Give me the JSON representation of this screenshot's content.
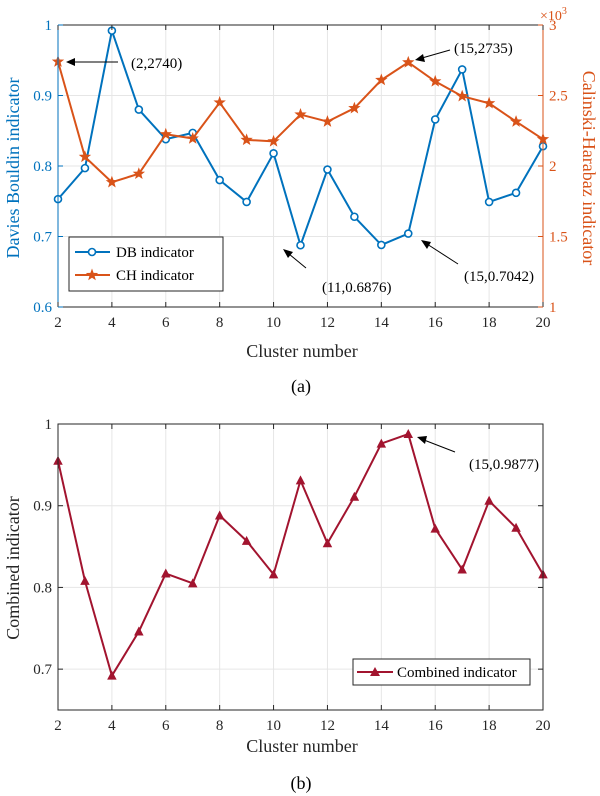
{
  "colors": {
    "db": "#0072BD",
    "ch": "#D95319",
    "combined": "#A2142F",
    "axis": "#262626",
    "grid": "#e6e6e6",
    "annotation": "#000000"
  },
  "chart_data": [
    {
      "type": "line",
      "panel_label": "(a)",
      "xlabel": "Cluster number",
      "ylabel_left": "Davies Bouldin indicator",
      "ylabel_right": "Calinski-Harabaz indicator",
      "right_exponent_label": "×10",
      "right_exponent_power": "3",
      "x": [
        2,
        3,
        4,
        5,
        6,
        7,
        8,
        9,
        10,
        11,
        12,
        13,
        14,
        15,
        16,
        17,
        18,
        19,
        20
      ],
      "xlim": [
        2,
        20
      ],
      "xticks": [
        2,
        4,
        6,
        8,
        10,
        12,
        14,
        16,
        18,
        20
      ],
      "ylim_left": [
        0.6,
        1.0
      ],
      "yticks_left": [
        0.6,
        0.7,
        0.8,
        0.9,
        1
      ],
      "ylim_right": [
        1,
        3
      ],
      "yticks_right": [
        1,
        1.5,
        2,
        2.5,
        3
      ],
      "grid": true,
      "legend_position": "bottom-left",
      "series": [
        {
          "name": "DB indicator",
          "axis": "left",
          "marker": "circle",
          "values": [
            0.753,
            0.797,
            0.992,
            0.88,
            0.838,
            0.847,
            0.78,
            0.749,
            0.818,
            0.6876,
            0.795,
            0.728,
            0.688,
            0.7042,
            0.866,
            0.937,
            0.749,
            0.762,
            0.828
          ]
        },
        {
          "name": "CH indicator",
          "axis": "right",
          "marker": "star",
          "values": [
            2.74,
            2.065,
            1.885,
            1.945,
            2.225,
            2.195,
            2.45,
            2.185,
            2.175,
            2.365,
            2.315,
            2.41,
            2.61,
            2.735,
            2.6,
            2.495,
            2.445,
            2.315,
            2.19
          ]
        }
      ],
      "annotations": [
        {
          "text": "(2,2740)",
          "x": 2,
          "y": 2.74,
          "axis": "right"
        },
        {
          "text": "(15,2735)",
          "x": 15,
          "y": 2.735,
          "axis": "right"
        },
        {
          "text": "(11,0.6876)",
          "x": 11,
          "y": 0.6876,
          "axis": "left"
        },
        {
          "text": "(15,0.7042)",
          "x": 15,
          "y": 0.7042,
          "axis": "left"
        }
      ]
    },
    {
      "type": "line",
      "panel_label": "(b)",
      "xlabel": "Cluster number",
      "ylabel": "Combined indicator",
      "x": [
        2,
        3,
        4,
        5,
        6,
        7,
        8,
        9,
        10,
        11,
        12,
        13,
        14,
        15,
        16,
        17,
        18,
        19,
        20
      ],
      "xlim": [
        2,
        20
      ],
      "xticks": [
        2,
        4,
        6,
        8,
        10,
        12,
        14,
        16,
        18,
        20
      ],
      "ylim": [
        0.65,
        1.0
      ],
      "yticks": [
        0.7,
        0.8,
        0.9,
        1
      ],
      "grid": true,
      "legend_position": "bottom-right",
      "series": [
        {
          "name": "Combined indicator",
          "marker": "triangle",
          "values": [
            0.955,
            0.808,
            0.692,
            0.746,
            0.817,
            0.805,
            0.888,
            0.857,
            0.816,
            0.931,
            0.854,
            0.911,
            0.976,
            0.9877,
            0.872,
            0.822,
            0.906,
            0.873,
            0.816
          ]
        }
      ],
      "annotations": [
        {
          "text": "(15,0.9877)",
          "x": 15,
          "y": 0.9877
        }
      ]
    }
  ]
}
